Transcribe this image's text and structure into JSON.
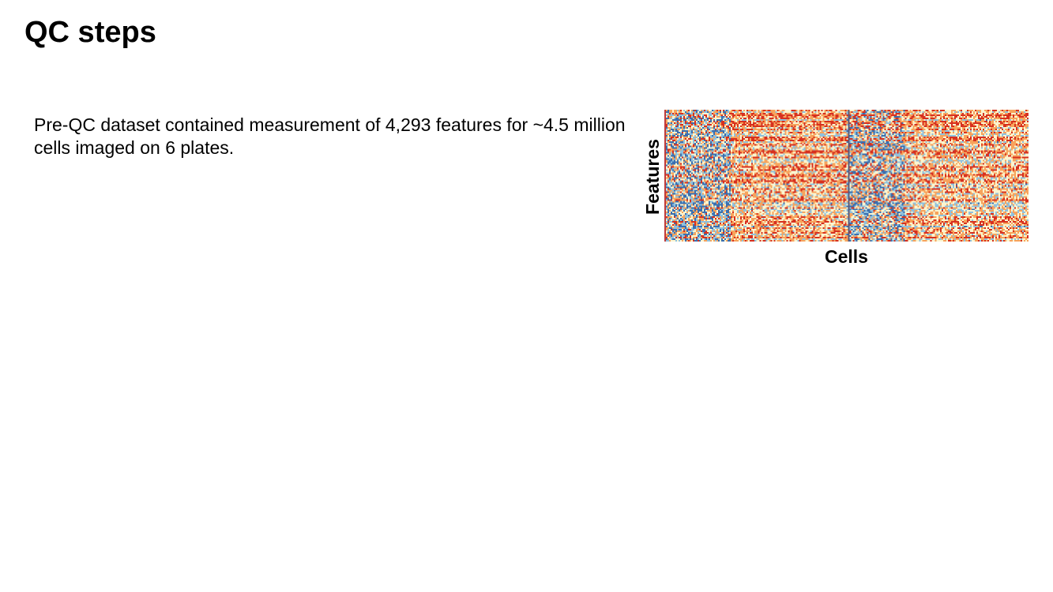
{
  "slide": {
    "title": "QC steps",
    "body": "Pre-QC dataset contained measurement of 4,293 features for ~4.5 million cells imaged on 6 plates."
  },
  "chart_data": {
    "type": "heatmap",
    "title": "",
    "xlabel": "Cells",
    "ylabel": "Features",
    "colormap": [
      "#3a6fb0",
      "#8fc1de",
      "#fbf5d0",
      "#f7a35c",
      "#d7301f"
    ]
  }
}
